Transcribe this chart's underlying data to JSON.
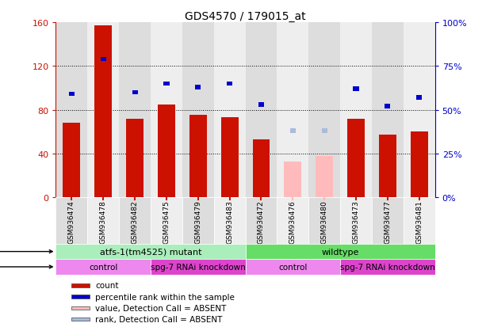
{
  "title": "GDS4570 / 179015_at",
  "samples": [
    "GSM936474",
    "GSM936478",
    "GSM936482",
    "GSM936475",
    "GSM936479",
    "GSM936483",
    "GSM936472",
    "GSM936476",
    "GSM936480",
    "GSM936473",
    "GSM936477",
    "GSM936481"
  ],
  "count_values": [
    68,
    157,
    72,
    85,
    75,
    73,
    53,
    null,
    null,
    72,
    57,
    60
  ],
  "count_absent": [
    null,
    null,
    null,
    null,
    null,
    null,
    null,
    33,
    38,
    null,
    null,
    null
  ],
  "rank_values": [
    59,
    79,
    60,
    65,
    63,
    65,
    53,
    null,
    null,
    62,
    52,
    57
  ],
  "rank_absent": [
    null,
    null,
    null,
    null,
    null,
    null,
    null,
    38,
    38,
    null,
    null,
    null
  ],
  "ylim_left": [
    0,
    160
  ],
  "ylim_right": [
    0,
    100
  ],
  "yticks_left": [
    0,
    40,
    80,
    120,
    160
  ],
  "yticks_right": [
    0,
    25,
    50,
    75,
    100
  ],
  "ytick_labels_left": [
    "0",
    "40",
    "80",
    "120",
    "160"
  ],
  "ytick_labels_right": [
    "0%",
    "25%",
    "50%",
    "75%",
    "100%"
  ],
  "count_color": "#cc1100",
  "rank_color": "#0000cc",
  "count_absent_color": "#ffbbbb",
  "rank_absent_color": "#aabbdd",
  "genotype_groups": [
    {
      "label": "atfs-1(tm4525) mutant",
      "start": 0,
      "end": 5,
      "color": "#aaeebb"
    },
    {
      "label": "wildtype",
      "start": 6,
      "end": 11,
      "color": "#66dd66"
    }
  ],
  "protocol_groups": [
    {
      "label": "control",
      "start": 0,
      "end": 2,
      "color": "#ee88ee"
    },
    {
      "label": "spg-7 RNAi knockdown",
      "start": 3,
      "end": 5,
      "color": "#dd44cc"
    },
    {
      "label": "control",
      "start": 6,
      "end": 8,
      "color": "#ee88ee"
    },
    {
      "label": "spg-7 RNAi knockdown",
      "start": 9,
      "end": 11,
      "color": "#dd44cc"
    }
  ],
  "legend_items": [
    {
      "label": "count",
      "color": "#cc1100"
    },
    {
      "label": "percentile rank within the sample",
      "color": "#0000cc"
    },
    {
      "label": "value, Detection Call = ABSENT",
      "color": "#ffbbbb"
    },
    {
      "label": "rank, Detection Call = ABSENT",
      "color": "#aabbdd"
    }
  ],
  "scale_factor": 1.6,
  "col_bg_odd": "#dddddd",
  "col_bg_even": "#eeeeee"
}
